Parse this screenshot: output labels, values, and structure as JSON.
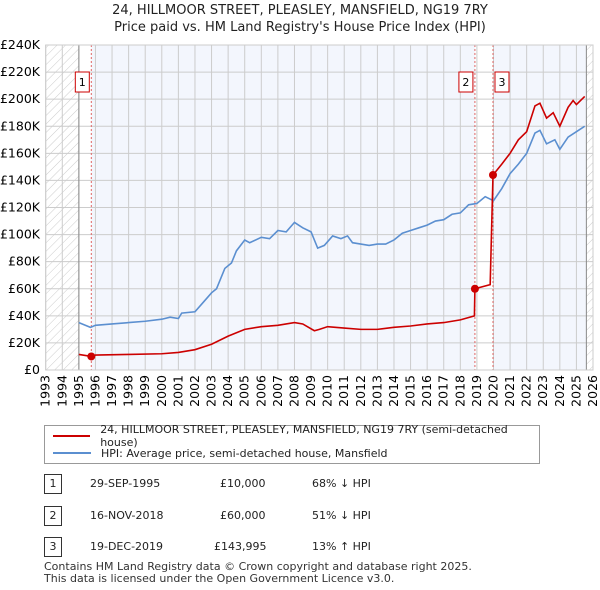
{
  "title": "24, HILLMOOR STREET, PLEASLEY, MANSFIELD, NG19 7RY",
  "subtitle": "Price paid vs. HM Land Registry's House Price Index (HPI)",
  "chart_data": {
    "type": "line",
    "title": "24, HILLMOOR STREET, PLEASLEY, MANSFIELD, NG19 7RY",
    "ylim": [
      0,
      240000
    ],
    "xlim": [
      1993,
      2026
    ],
    "ytick_labels": [
      "£0",
      "£20K",
      "£40K",
      "£60K",
      "£80K",
      "£100K",
      "£120K",
      "£140K",
      "£160K",
      "£180K",
      "£200K",
      "£220K",
      "£240K"
    ],
    "xtick_labels": [
      "1993",
      "1994",
      "1995",
      "1996",
      "1997",
      "1998",
      "1999",
      "2000",
      "2001",
      "2002",
      "2003",
      "2004",
      "2005",
      "2006",
      "2007",
      "2008",
      "2009",
      "2010",
      "2011",
      "2012",
      "2013",
      "2014",
      "2015",
      "2016",
      "2017",
      "2018",
      "2019",
      "2020",
      "2021",
      "2022",
      "2023",
      "2024",
      "2025",
      "2026"
    ],
    "series": [
      {
        "name": "24, HILLMOOR STREET, PLEASLEY, MANSFIELD, NG19 7RY (semi-detached house)",
        "color": "#cc0000",
        "x": [
          1995,
          1995.75,
          1996,
          1998,
          2000,
          2001,
          2002,
          2003,
          2004,
          2005,
          2006,
          2007,
          2008,
          2008.5,
          2009.2,
          2009.5,
          2010,
          2011,
          2012,
          2013,
          2014,
          2015,
          2016,
          2017,
          2018,
          2018.85,
          2018.88,
          2019.8,
          2019.97,
          2020.5,
          2021,
          2021.5,
          2022,
          2022.5,
          2022.8,
          2023.2,
          2023.6,
          2024,
          2024.5,
          2024.8,
          2025,
          2025.5
        ],
        "y": [
          11500,
          10000,
          11000,
          11500,
          12000,
          13000,
          15000,
          19000,
          25000,
          30000,
          32000,
          33000,
          35000,
          34000,
          29000,
          30000,
          32000,
          31000,
          30000,
          30000,
          31500,
          32500,
          34000,
          35000,
          37000,
          40000,
          60000,
          63000,
          143995,
          152000,
          160000,
          170000,
          176000,
          195000,
          197000,
          186000,
          190000,
          180000,
          194000,
          199000,
          196000,
          202000
        ]
      },
      {
        "name": "HPI: Average price, semi-detached house, Mansfield",
        "color": "#5b8fd0",
        "x": [
          1995,
          1995.7,
          1996,
          1997,
          1998,
          1999,
          2000,
          2000.5,
          2001,
          2001.2,
          2002,
          2002.5,
          2003,
          2003.3,
          2003.8,
          2004.2,
          2004.5,
          2005,
          2005.3,
          2006,
          2006.5,
          2007,
          2007.5,
          2008,
          2008.5,
          2009,
          2009.2,
          2009.4,
          2009.8,
          2010.3,
          2010.8,
          2011.2,
          2011.5,
          2012,
          2012.5,
          2013,
          2013.5,
          2014,
          2014.5,
          2015,
          2015.5,
          2016,
          2016.5,
          2017,
          2017.5,
          2018,
          2018.5,
          2019,
          2019.5,
          2020,
          2020.5,
          2021,
          2021.5,
          2022,
          2022.5,
          2022.8,
          2023.2,
          2023.7,
          2024,
          2024.5,
          2025,
          2025.5
        ],
        "y": [
          35000,
          31500,
          33000,
          34000,
          35000,
          36000,
          37500,
          39000,
          38000,
          42000,
          43000,
          50000,
          57000,
          60000,
          75000,
          79000,
          88000,
          96000,
          94000,
          98000,
          97000,
          103000,
          102000,
          109000,
          105000,
          102000,
          96000,
          90000,
          92000,
          99000,
          97000,
          99000,
          94000,
          93000,
          92000,
          93000,
          93000,
          96000,
          101000,
          103000,
          105000,
          107000,
          110000,
          111000,
          115000,
          116000,
          122000,
          123000,
          128000,
          125000,
          134000,
          145000,
          152000,
          160000,
          175000,
          177000,
          167000,
          170000,
          163000,
          172000,
          176000,
          180000
        ]
      }
    ],
    "sales": [
      {
        "label": "1",
        "x": 1995.75,
        "y": 10000
      },
      {
        "label": "2",
        "x": 2018.88,
        "y": 60000
      },
      {
        "label": "3",
        "x": 2019.97,
        "y": 143995
      }
    ]
  },
  "legend": {
    "property": "24, HILLMOOR STREET, PLEASLEY, MANSFIELD, NG19 7RY (semi-detached house)",
    "hpi": "HPI: Average price, semi-detached house, Mansfield"
  },
  "transactions": [
    {
      "num": "1",
      "date": "29-SEP-1995",
      "price": "£10,000",
      "hpi": "68% ↓ HPI"
    },
    {
      "num": "2",
      "date": "16-NOV-2018",
      "price": "£60,000",
      "hpi": "51% ↓ HPI"
    },
    {
      "num": "3",
      "date": "19-DEC-2019",
      "price": "£143,995",
      "hpi": "13% ↑ HPI"
    }
  ],
  "footer": [
    "Contains HM Land Registry data © Crown copyright and database right 2025.",
    "This data is licensed under the Open Government Licence v3.0."
  ]
}
